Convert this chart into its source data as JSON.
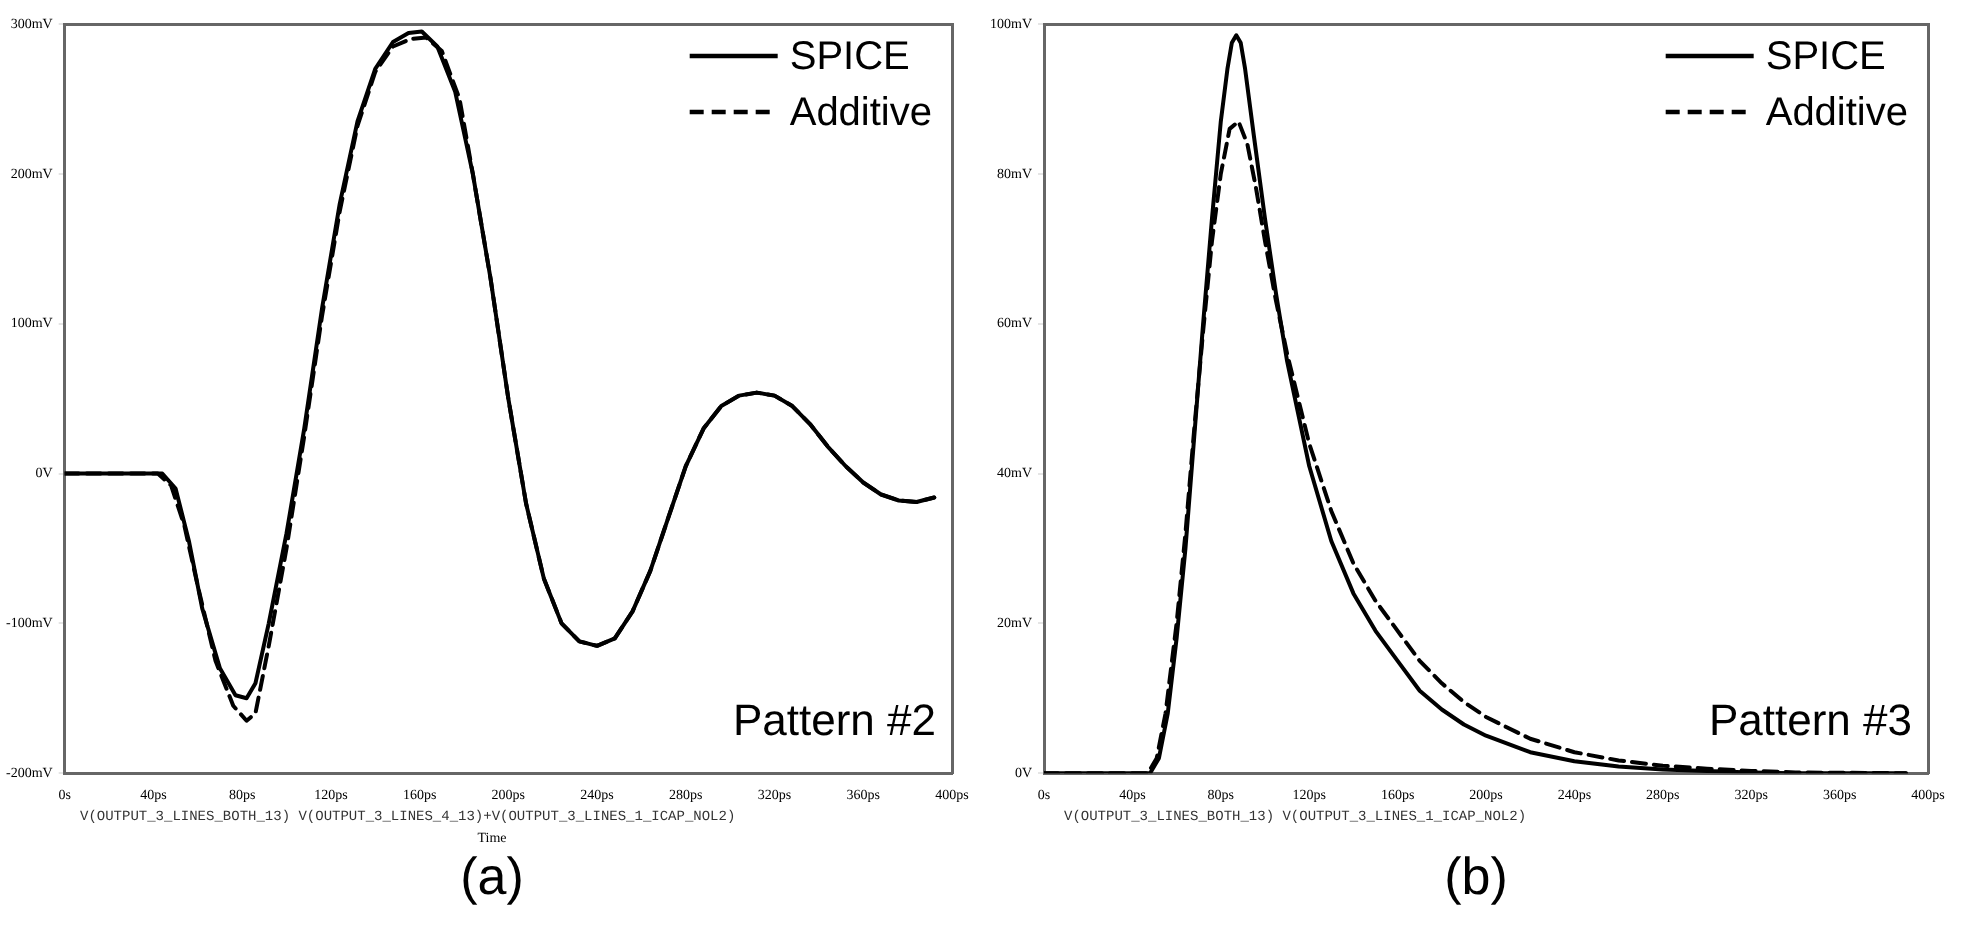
{
  "chart_data": [
    {
      "type": "line",
      "xlabel": "Time",
      "xlim": [
        0,
        400
      ],
      "xticks": [
        {
          "value": 0,
          "label": "0s"
        },
        {
          "value": 40,
          "label": "40ps"
        },
        {
          "value": 80,
          "label": "80ps"
        },
        {
          "value": 120,
          "label": "120ps"
        },
        {
          "value": 160,
          "label": "160ps"
        },
        {
          "value": 200,
          "label": "200ps"
        },
        {
          "value": 240,
          "label": "240ps"
        },
        {
          "value": 280,
          "label": "280ps"
        },
        {
          "value": 320,
          "label": "320ps"
        },
        {
          "value": 360,
          "label": "360ps"
        },
        {
          "value": 400,
          "label": "400ps"
        }
      ],
      "ylim": [
        -200,
        300
      ],
      "yticks": [
        {
          "value": -200,
          "label": "-200mV"
        },
        {
          "value": -100,
          "label": "-100mV"
        },
        {
          "value": 0,
          "label": "0V"
        },
        {
          "value": 100,
          "label": "100mV"
        },
        {
          "value": 200,
          "label": "200mV"
        },
        {
          "value": 300,
          "label": "300mV"
        }
      ],
      "grid": false,
      "legend": "top right",
      "marker": "none",
      "annotations": [
        "Pattern #2",
        "V(OUTPUT_3_LINES_BOTH_13)   V(OUTPUT_3_LINES_4_13)+V(OUTPUT_3_LINES_1_ICAP_NOL2)",
        "(a)"
      ],
      "series": [
        {
          "name": "SPICE",
          "color": "#000000",
          "line_style": "solid",
          "x": [
            0,
            44,
            50,
            56,
            62,
            70,
            77,
            82,
            86,
            92,
            100,
            108,
            116,
            124,
            132,
            140,
            148,
            155,
            161,
            168,
            176,
            184,
            192,
            200,
            208,
            216,
            224,
            232,
            240,
            248,
            256,
            264,
            272,
            280,
            288,
            296,
            304,
            312,
            320,
            328,
            336,
            344,
            352,
            360,
            368,
            376,
            384,
            392
          ],
          "values": [
            0,
            0,
            -10,
            -45,
            -90,
            -130,
            -148,
            -150,
            -140,
            -100,
            -40,
            30,
            110,
            180,
            235,
            270,
            288,
            294,
            295,
            285,
            255,
            200,
            130,
            50,
            -20,
            -70,
            -100,
            -112,
            -115,
            -110,
            -92,
            -65,
            -30,
            5,
            30,
            45,
            52,
            54,
            52,
            45,
            33,
            18,
            5,
            -6,
            -14,
            -18,
            -19,
            -16
          ]
        },
        {
          "name": "Additive",
          "color": "#000000",
          "line_style": "dashed",
          "x": [
            0,
            42,
            48,
            54,
            60,
            68,
            76,
            82,
            86,
            92,
            100,
            108,
            116,
            124,
            132,
            140,
            148,
            156,
            163,
            170,
            178,
            184,
            192,
            200,
            208,
            216,
            224,
            232,
            240,
            248,
            256,
            264,
            272,
            280,
            288,
            296,
            304,
            312,
            320,
            328,
            336,
            344,
            352,
            360,
            368,
            376,
            384,
            392
          ],
          "values": [
            0,
            0,
            -8,
            -35,
            -75,
            -125,
            -155,
            -165,
            -160,
            -115,
            -50,
            25,
            105,
            175,
            232,
            268,
            285,
            290,
            291,
            282,
            250,
            200,
            130,
            50,
            -20,
            -70,
            -100,
            -112,
            -115,
            -110,
            -92,
            -65,
            -30,
            5,
            30,
            45,
            52,
            54,
            52,
            45,
            33,
            18,
            5,
            -6,
            -14,
            -18,
            -19,
            -16
          ]
        }
      ]
    },
    {
      "type": "line",
      "xlim": [
        0,
        400
      ],
      "xticks": [
        {
          "value": 0,
          "label": "0s"
        },
        {
          "value": 40,
          "label": "40ps"
        },
        {
          "value": 80,
          "label": "80ps"
        },
        {
          "value": 120,
          "label": "120ps"
        },
        {
          "value": 160,
          "label": "160ps"
        },
        {
          "value": 200,
          "label": "200ps"
        },
        {
          "value": 240,
          "label": "240ps"
        },
        {
          "value": 280,
          "label": "280ps"
        },
        {
          "value": 320,
          "label": "320ps"
        },
        {
          "value": 360,
          "label": "360ps"
        },
        {
          "value": 400,
          "label": "400ps"
        }
      ],
      "ylim": [
        0,
        100
      ],
      "yticks": [
        {
          "value": 0,
          "label": "0V"
        },
        {
          "value": 20,
          "label": "20mV"
        },
        {
          "value": 40,
          "label": "40mV"
        },
        {
          "value": 60,
          "label": "60mV"
        },
        {
          "value": 80,
          "label": "80mV"
        },
        {
          "value": 100,
          "label": "100mV"
        }
      ],
      "grid": false,
      "legend": "top right",
      "marker": "none",
      "annotations": [
        "Pattern #3",
        "V(OUTPUT_3_LINES_BOTH_13)   V(OUTPUT_3_LINES_1_ICAP_NOL2)",
        "(b)"
      ],
      "series": [
        {
          "name": "SPICE",
          "color": "#000000",
          "line_style": "solid",
          "x": [
            0,
            48,
            52,
            56,
            60,
            64,
            68,
            72,
            76,
            80,
            83,
            85,
            87,
            89,
            91,
            95,
            100,
            105,
            110,
            115,
            120,
            130,
            140,
            150,
            160,
            170,
            180,
            190,
            200,
            220,
            240,
            260,
            280,
            300,
            320,
            340,
            390
          ],
          "values": [
            0,
            0,
            2,
            8,
            18,
            30,
            45,
            60,
            74,
            87,
            94,
            97.5,
            98.5,
            97.5,
            94,
            85,
            74,
            64,
            55,
            48,
            41,
            31,
            24,
            19,
            15,
            11,
            8.5,
            6.5,
            5,
            2.8,
            1.6,
            0.9,
            0.5,
            0.3,
            0.1,
            0,
            0
          ]
        },
        {
          "name": "Additive",
          "color": "#000000",
          "line_style": "dashed",
          "x": [
            0,
            47,
            51,
            55,
            60,
            64,
            68,
            72,
            76,
            80,
            84,
            88,
            92,
            96,
            100,
            105,
            110,
            115,
            120,
            130,
            140,
            150,
            160,
            170,
            180,
            190,
            200,
            220,
            240,
            260,
            280,
            300,
            320,
            340,
            390
          ],
          "values": [
            0,
            0,
            2,
            8,
            20,
            32,
            46,
            59,
            71,
            80,
            86,
            87,
            84,
            78,
            71,
            63,
            56,
            50,
            44,
            35,
            28,
            23,
            19,
            15,
            12,
            9.5,
            7.5,
            4.6,
            2.8,
            1.7,
            1,
            0.6,
            0.3,
            0.1,
            0
          ]
        }
      ]
    }
  ]
}
